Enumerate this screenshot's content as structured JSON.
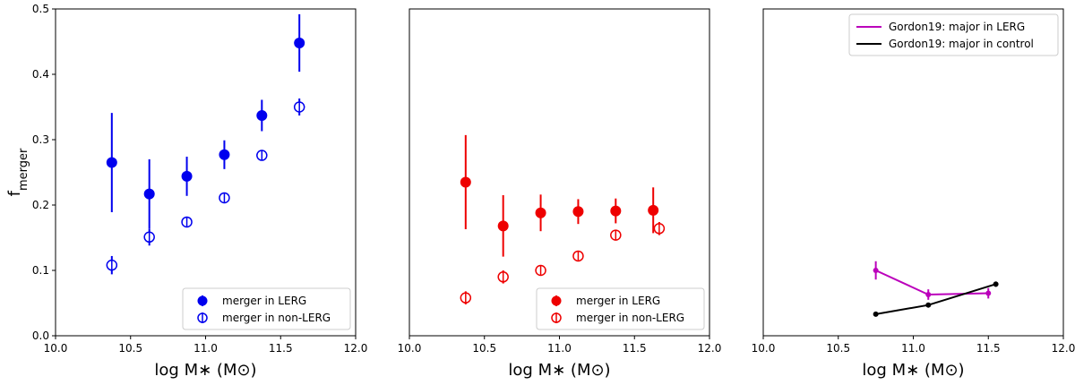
{
  "chart_data": [
    {
      "type": "scatter",
      "panel": "left",
      "xlabel": "log M∗ (M⊙)",
      "ylabel": "f",
      "ylabel_sub": "merger",
      "xlim": [
        10.0,
        12.0
      ],
      "ylim": [
        0.0,
        0.5
      ],
      "x_ticks": [
        "10.0",
        "10.5",
        "11.0",
        "11.5",
        "12.0"
      ],
      "y_ticks": [
        "0.0",
        "0.1",
        "0.2",
        "0.3",
        "0.4",
        "0.5"
      ],
      "grid": false,
      "legend": "bottom-right",
      "series": [
        {
          "name": "merger in LERG",
          "color": "#0000ee",
          "marker": "filled-circle",
          "x": [
            10.375,
            10.625,
            10.875,
            11.125,
            11.375,
            11.625
          ],
          "y": [
            0.265,
            0.217,
            0.244,
            0.277,
            0.337,
            0.448
          ],
          "yerr": [
            0.076,
            0.053,
            0.03,
            0.022,
            0.024,
            0.044
          ]
        },
        {
          "name": "merger in non-LERG",
          "color": "#0000ee",
          "marker": "open-circle",
          "x": [
            10.375,
            10.625,
            10.875,
            11.125,
            11.375,
            11.625
          ],
          "y": [
            0.108,
            0.151,
            0.174,
            0.211,
            0.276,
            0.35
          ],
          "yerr": [
            0.014,
            0.013,
            0.007,
            0.005,
            0.006,
            0.013
          ]
        }
      ]
    },
    {
      "type": "scatter",
      "panel": "middle",
      "xlabel": "log M∗ (M⊙)",
      "xlim": [
        10.0,
        12.0
      ],
      "ylim": [
        0.0,
        0.5
      ],
      "x_ticks": [
        "10.0",
        "10.5",
        "11.0",
        "11.5",
        "12.0"
      ],
      "grid": false,
      "legend": "bottom-right",
      "series": [
        {
          "name": "merger in LERG",
          "color": "#ee0000",
          "marker": "filled-circle",
          "x": [
            10.375,
            10.625,
            10.875,
            11.125,
            11.375,
            11.625
          ],
          "y": [
            0.235,
            0.168,
            0.188,
            0.19,
            0.191,
            0.192
          ],
          "yerr": [
            0.072,
            0.047,
            0.028,
            0.019,
            0.019,
            0.035
          ]
        },
        {
          "name": "merger in non-LERG",
          "color": "#ee0000",
          "marker": "open-circle",
          "x": [
            10.375,
            10.625,
            10.875,
            11.125,
            11.375,
            11.665
          ],
          "y": [
            0.058,
            0.09,
            0.1,
            0.122,
            0.154,
            0.164
          ],
          "yerr": [
            0.01,
            0.01,
            0.007,
            0.005,
            0.004,
            0.01
          ]
        }
      ]
    },
    {
      "type": "line",
      "panel": "right",
      "xlabel": "log M∗ (M⊙)",
      "xlim": [
        10.0,
        12.0
      ],
      "ylim": [
        0.0,
        0.5
      ],
      "x_ticks": [
        "10.0",
        "10.5",
        "11.0",
        "11.5",
        "12.0"
      ],
      "grid": false,
      "legend": "top-right",
      "series": [
        {
          "name": "Gordon19: major in LERG",
          "color": "#bb00bb",
          "marker": "small-dot",
          "x": [
            10.75,
            11.1,
            11.5
          ],
          "y": [
            0.1,
            0.063,
            0.065
          ],
          "yerr": [
            0.014,
            0.008,
            0.008
          ]
        },
        {
          "name": "Gordon19: major in control",
          "color": "#000000",
          "marker": "small-dot",
          "x": [
            10.75,
            11.1,
            11.55
          ],
          "y": [
            0.033,
            0.047,
            0.079
          ],
          "yerr": [
            0.001,
            0.002,
            0.004
          ]
        }
      ]
    }
  ]
}
